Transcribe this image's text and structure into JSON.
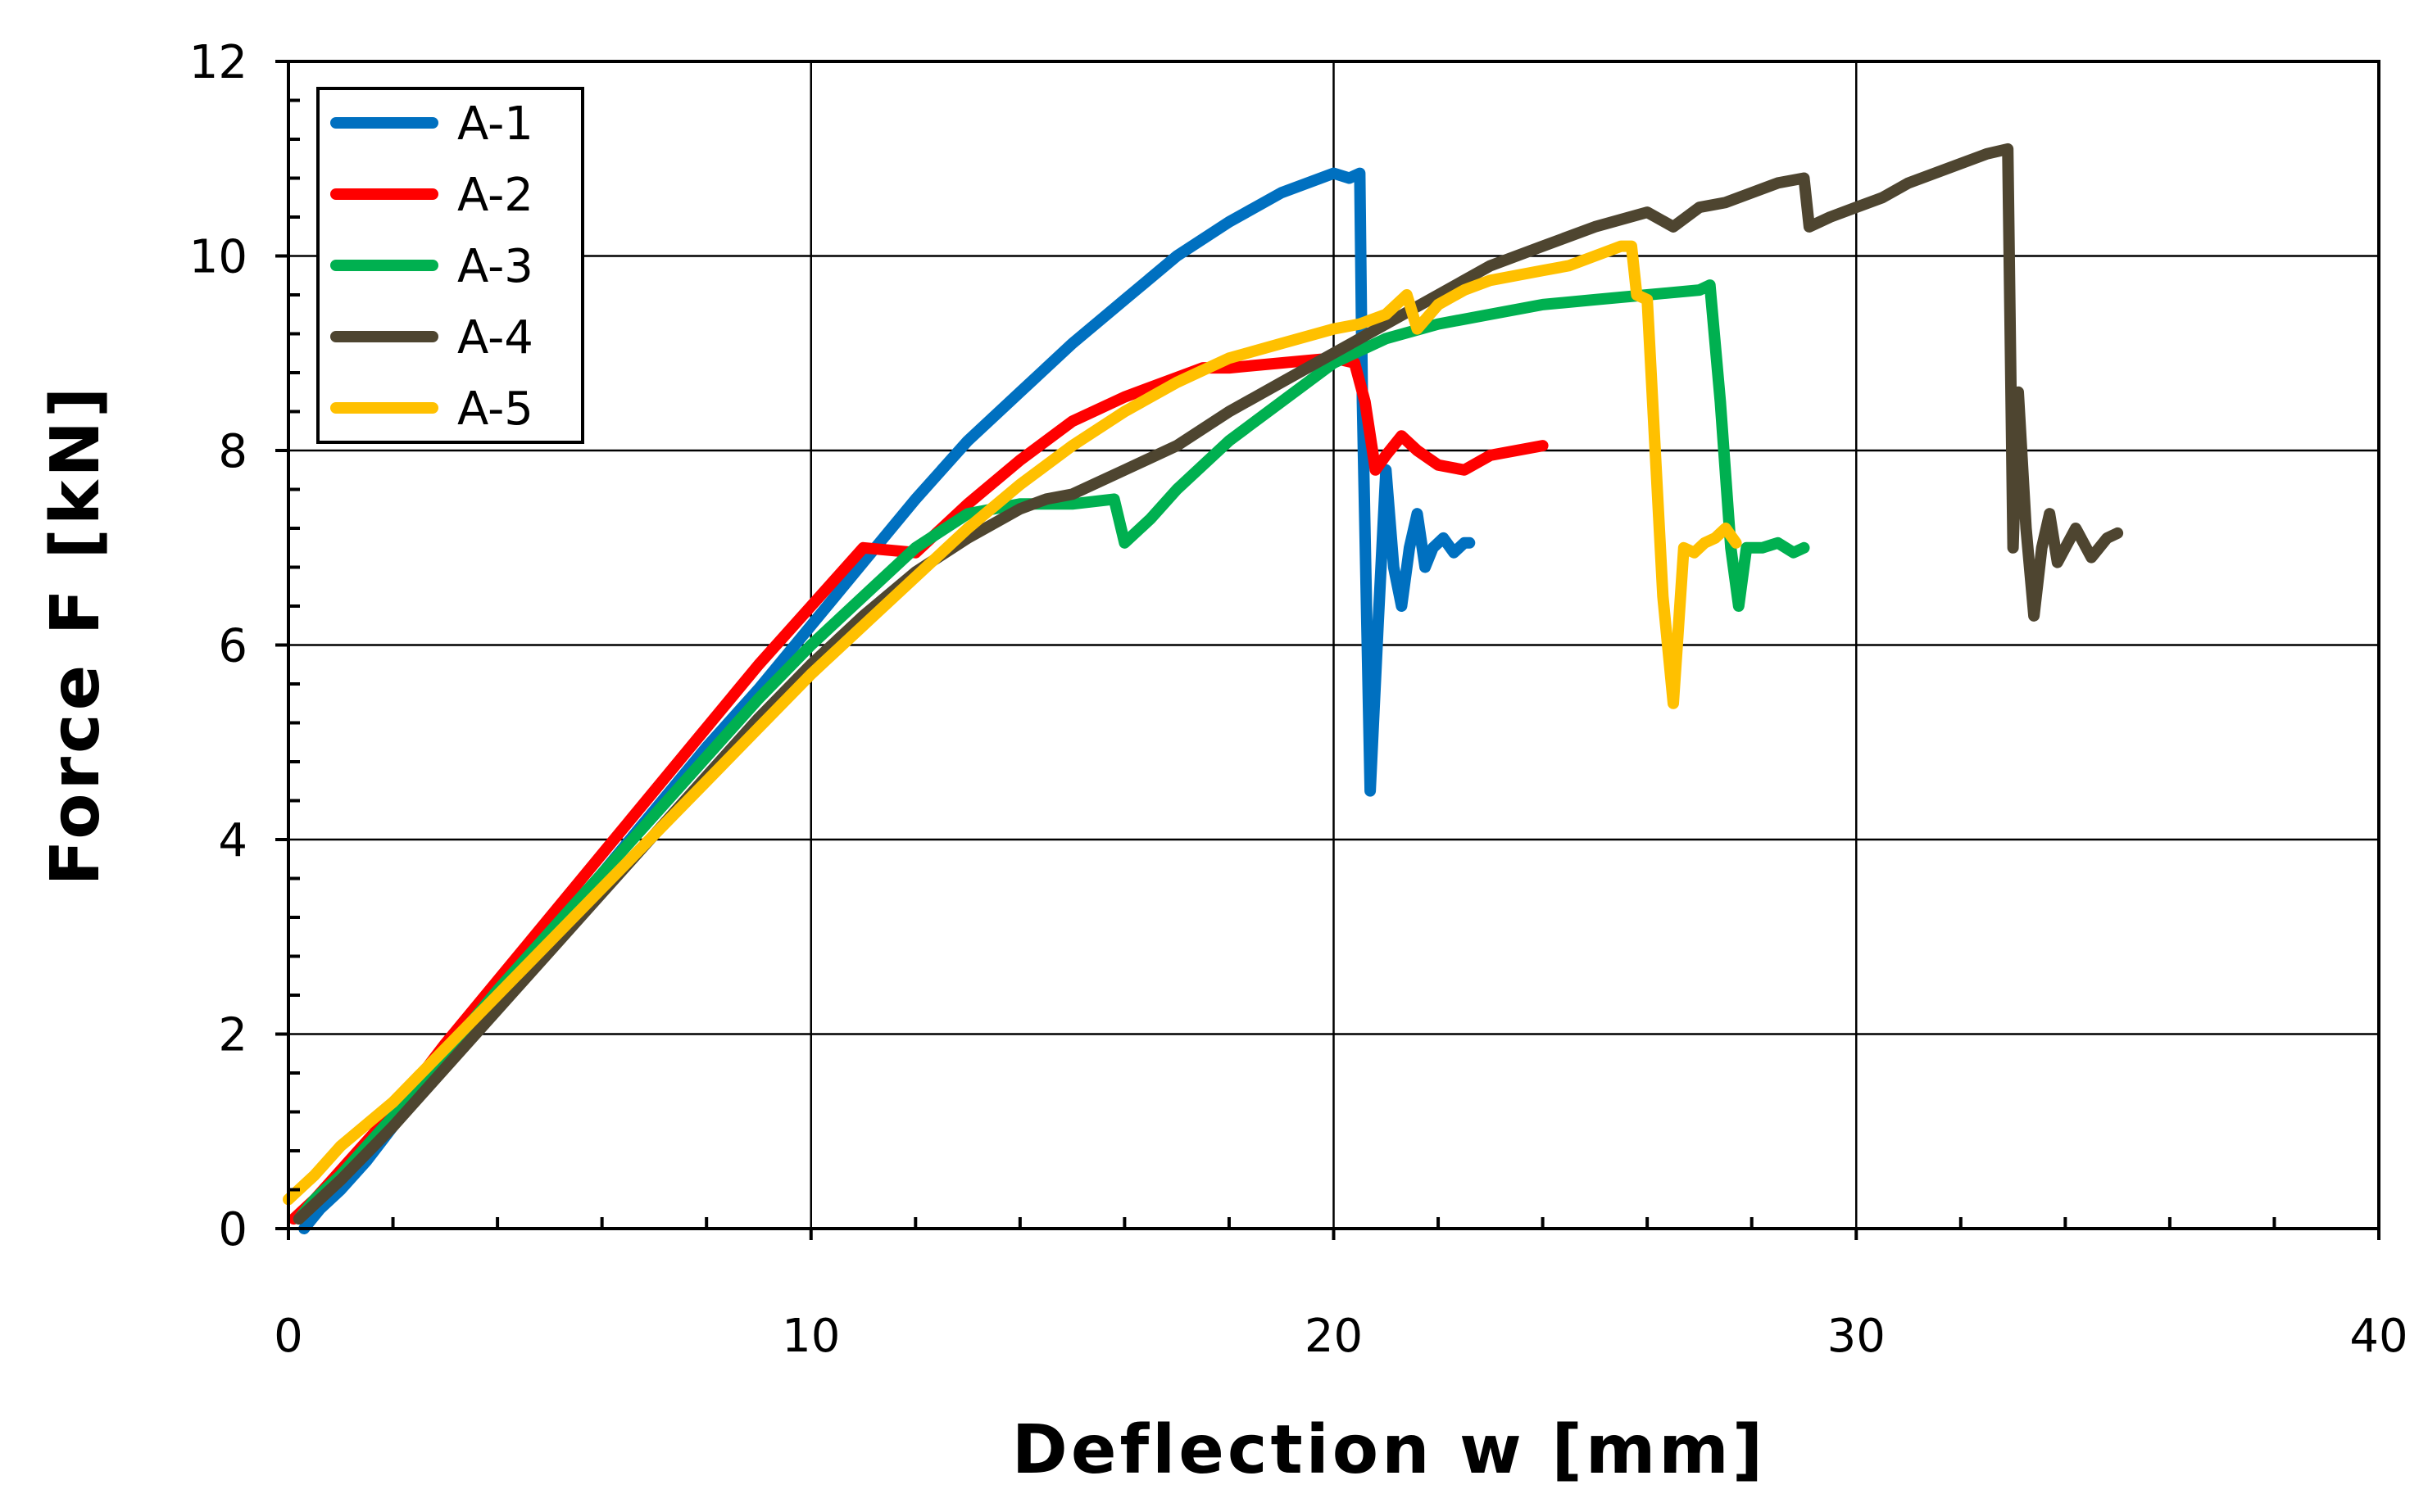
{
  "chart_data": {
    "type": "line",
    "title": "",
    "xlabel": "Deflection w [mm]",
    "ylabel": "Force F [kN]",
    "xlim": [
      0,
      40
    ],
    "ylim": [
      0,
      12
    ],
    "xticks": [
      0,
      10,
      20,
      30,
      40
    ],
    "yticks": [
      0,
      2,
      4,
      6,
      8,
      10,
      12
    ],
    "x_tick_labels": [
      "0",
      "10",
      "20",
      "30",
      "40"
    ],
    "y_tick_labels": [
      "0",
      "2",
      "4",
      "6",
      "8",
      "10",
      "12"
    ],
    "grid": true,
    "legend_position": "top-left",
    "series": [
      {
        "name": "A-1",
        "color": "#0070C0",
        "x": [
          0.3,
          0.6,
          1.0,
          1.5,
          2.0,
          3.0,
          4.0,
          5.0,
          6.0,
          7.0,
          8.0,
          9.0,
          10.0,
          11.0,
          12.0,
          13.0,
          14.0,
          15.0,
          16.0,
          17.0,
          18.0,
          19.0,
          20.0,
          20.3,
          20.5,
          20.55,
          20.7,
          20.85,
          21.0,
          21.15,
          21.3,
          21.45,
          21.6,
          21.75,
          21.9,
          22.1,
          22.3,
          22.5,
          22.6
        ],
        "y": [
          0.0,
          0.2,
          0.4,
          0.7,
          1.05,
          1.7,
          2.35,
          3.0,
          3.65,
          4.3,
          4.95,
          5.55,
          6.2,
          6.85,
          7.5,
          8.1,
          8.6,
          9.1,
          9.55,
          10.0,
          10.35,
          10.65,
          10.85,
          10.8,
          10.85,
          8.5,
          4.5,
          6.2,
          7.8,
          6.8,
          6.4,
          7.0,
          7.35,
          6.8,
          7.0,
          7.1,
          6.95,
          7.05,
          7.05
        ]
      },
      {
        "name": "A-2",
        "color": "#FF0000",
        "x": [
          0.1,
          0.5,
          1.0,
          2.0,
          3.0,
          4.0,
          5.0,
          6.0,
          7.0,
          8.0,
          9.0,
          10.0,
          11.0,
          12.0,
          13.0,
          14.0,
          15.0,
          16.0,
          17.0,
          17.5,
          18.0,
          19.0,
          20.0,
          20.4,
          20.6,
          20.8,
          21.0,
          21.3,
          21.6,
          22.0,
          22.5,
          23.0,
          23.5,
          24.0
        ],
        "y": [
          0.1,
          0.3,
          0.6,
          1.2,
          1.9,
          2.55,
          3.2,
          3.85,
          4.5,
          5.15,
          5.8,
          6.4,
          7.0,
          6.95,
          7.45,
          7.9,
          8.3,
          8.55,
          8.75,
          8.85,
          8.85,
          8.9,
          8.95,
          8.9,
          8.5,
          7.8,
          7.95,
          8.15,
          8.0,
          7.85,
          7.8,
          7.95,
          8.0,
          8.05
        ]
      },
      {
        "name": "A-3",
        "color": "#00B050",
        "x": [
          0.2,
          0.5,
          1.0,
          2.0,
          3.0,
          4.0,
          5.0,
          6.0,
          7.0,
          8.0,
          9.0,
          10.0,
          11.0,
          12.0,
          13.0,
          14.0,
          15.0,
          15.8,
          16.0,
          16.5,
          17.0,
          18.0,
          19.0,
          20.0,
          21.0,
          22.0,
          23.0,
          24.0,
          25.0,
          26.0,
          27.0,
          27.2,
          27.4,
          27.6,
          27.75,
          27.9,
          28.2,
          28.5,
          28.8,
          29.0
        ],
        "y": [
          0.1,
          0.3,
          0.55,
          1.15,
          1.8,
          2.45,
          3.05,
          3.65,
          4.25,
          4.85,
          5.45,
          6.0,
          6.5,
          7.0,
          7.35,
          7.45,
          7.45,
          7.5,
          7.05,
          7.3,
          7.6,
          8.1,
          8.5,
          8.9,
          9.15,
          9.3,
          9.4,
          9.5,
          9.55,
          9.6,
          9.65,
          9.7,
          8.5,
          7.0,
          6.4,
          7.0,
          7.0,
          7.05,
          6.95,
          7.0
        ]
      },
      {
        "name": "A-4",
        "color": "#4E4530",
        "x": [
          0.2,
          0.5,
          1.0,
          2.0,
          3.0,
          4.0,
          5.0,
          6.0,
          7.0,
          8.0,
          9.0,
          10.0,
          11.0,
          12.0,
          13.0,
          14.0,
          14.5,
          15.0,
          16.0,
          17.0,
          18.0,
          19.0,
          20.0,
          21.0,
          22.0,
          23.0,
          24.0,
          25.0,
          26.0,
          26.5,
          27.0,
          27.5,
          28.0,
          28.5,
          29.0,
          29.1,
          29.5,
          30.0,
          30.5,
          31.0,
          31.5,
          32.0,
          32.5,
          32.9,
          33.0,
          33.1,
          33.25,
          33.4,
          33.55,
          33.7,
          33.85,
          34.0,
          34.2,
          34.5,
          34.8,
          35.0
        ],
        "y": [
          0.1,
          0.25,
          0.5,
          1.05,
          1.65,
          2.25,
          2.85,
          3.45,
          4.05,
          4.65,
          5.25,
          5.8,
          6.3,
          6.75,
          7.1,
          7.4,
          7.5,
          7.55,
          7.8,
          8.05,
          8.4,
          8.7,
          9.0,
          9.3,
          9.6,
          9.9,
          10.1,
          10.3,
          10.45,
          10.3,
          10.5,
          10.55,
          10.65,
          10.75,
          10.8,
          10.3,
          10.4,
          10.5,
          10.6,
          10.75,
          10.85,
          10.95,
          11.05,
          11.1,
          7.0,
          8.6,
          7.2,
          6.3,
          7.0,
          7.35,
          6.85,
          7.0,
          7.2,
          6.9,
          7.1,
          7.15
        ]
      },
      {
        "name": "A-5",
        "color": "#FFC000",
        "x": [
          0.0,
          0.5,
          1.0,
          2.0,
          3.0,
          4.0,
          5.0,
          6.0,
          7.0,
          8.0,
          9.0,
          10.0,
          11.0,
          12.0,
          13.0,
          14.0,
          15.0,
          16.0,
          17.0,
          18.0,
          19.0,
          20.0,
          20.5,
          21.0,
          21.4,
          21.6,
          22.0,
          22.5,
          23.0,
          23.5,
          24.0,
          24.5,
          25.0,
          25.5,
          25.7,
          25.8,
          26.0,
          26.3,
          26.5,
          26.7,
          26.9,
          27.1,
          27.3,
          27.5,
          27.7
        ],
        "y": [
          0.3,
          0.55,
          0.85,
          1.3,
          1.85,
          2.4,
          2.95,
          3.5,
          4.05,
          4.6,
          5.15,
          5.7,
          6.2,
          6.7,
          7.2,
          7.65,
          8.05,
          8.4,
          8.7,
          8.95,
          9.1,
          9.25,
          9.3,
          9.4,
          9.6,
          9.25,
          9.5,
          9.65,
          9.75,
          9.8,
          9.85,
          9.9,
          10.0,
          10.1,
          10.1,
          9.6,
          9.55,
          6.5,
          5.4,
          7.0,
          6.95,
          7.05,
          7.1,
          7.2,
          7.05
        ]
      }
    ]
  }
}
